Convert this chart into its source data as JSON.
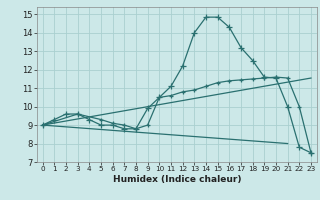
{
  "xlabel": "Humidex (Indice chaleur)",
  "bg_color": "#cce8e8",
  "grid_color": "#aad0d0",
  "line_color": "#2a7070",
  "xlim": [
    -0.5,
    23.5
  ],
  "ylim": [
    7,
    15.4
  ],
  "xticks": [
    0,
    1,
    2,
    3,
    4,
    5,
    6,
    7,
    8,
    9,
    10,
    11,
    12,
    13,
    14,
    15,
    16,
    17,
    18,
    19,
    20,
    21,
    22,
    23
  ],
  "yticks": [
    7,
    8,
    9,
    10,
    11,
    12,
    13,
    14,
    15
  ],
  "curve1_x": [
    0,
    1,
    2,
    3,
    4,
    5,
    6,
    7,
    8,
    9,
    10,
    11,
    12,
    13,
    14,
    15,
    16,
    17,
    18,
    19,
    20,
    21,
    22,
    23
  ],
  "curve1_y": [
    9.0,
    9.3,
    9.6,
    9.6,
    9.3,
    9.0,
    9.0,
    8.8,
    8.8,
    9.9,
    10.5,
    11.1,
    12.2,
    14.0,
    14.85,
    14.85,
    14.3,
    13.2,
    12.5,
    11.6,
    11.55,
    10.0,
    7.8,
    7.5
  ],
  "curve2_x": [
    0,
    3,
    5,
    6,
    7,
    8,
    9,
    10,
    11,
    12,
    13,
    14,
    15,
    16,
    17,
    18,
    19,
    20,
    21,
    22,
    23
  ],
  "curve2_y": [
    9.0,
    9.6,
    9.3,
    9.1,
    9.0,
    8.8,
    9.0,
    10.5,
    10.6,
    10.8,
    10.9,
    11.1,
    11.3,
    11.4,
    11.45,
    11.5,
    11.55,
    11.6,
    11.55,
    10.0,
    7.5
  ],
  "curve3_x": [
    0,
    23
  ],
  "curve3_y": [
    9.0,
    11.55
  ],
  "curve4_x": [
    0,
    21
  ],
  "curve4_y": [
    9.0,
    8.0
  ]
}
